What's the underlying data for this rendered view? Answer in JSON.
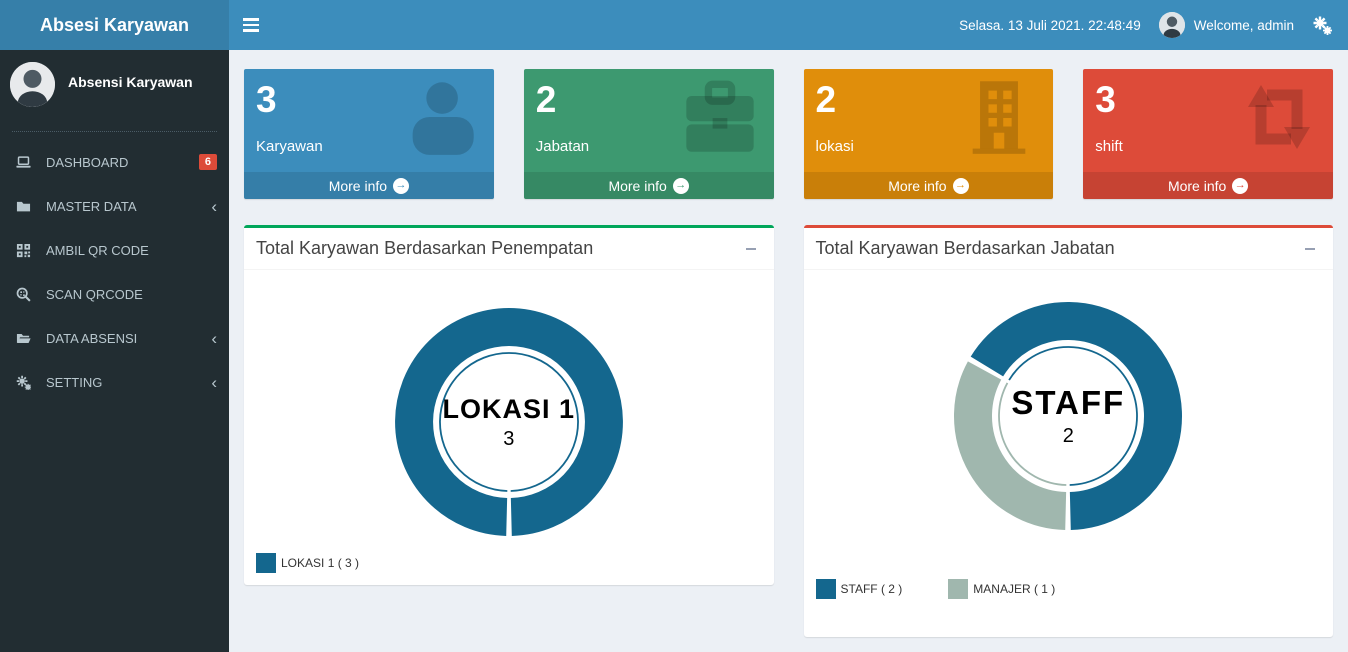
{
  "theme": {
    "navbar_bg": "#3c8dbc",
    "logo_bg": "#367fa9",
    "sidebar_bg": "#222d32",
    "sidebar_text": "#b8c7ce",
    "content_bg": "#ecf0f5",
    "badge_red": "#dd4b39"
  },
  "app": {
    "brand": "Absesi Karyawan"
  },
  "navbar": {
    "datetime": "Selasa. 13 Juli 2021. 22:48:49",
    "welcome": "Welcome, admin"
  },
  "sidebar": {
    "user_name": "Absensi Karyawan",
    "items": [
      {
        "label": "DASHBOARD",
        "icon": "laptop-icon",
        "badge": "6"
      },
      {
        "label": "MASTER DATA",
        "icon": "folder-icon",
        "chevron": "‹"
      },
      {
        "label": "AMBIL QR CODE",
        "icon": "qrcode-icon"
      },
      {
        "label": "SCAN QRCODE",
        "icon": "qr-scan-icon"
      },
      {
        "label": "DATA ABSENSI",
        "icon": "folder-open-icon",
        "chevron": "‹"
      },
      {
        "label": "SETTING",
        "icon": "gears-icon",
        "chevron": "‹"
      }
    ]
  },
  "info_boxes": [
    {
      "value": "3",
      "label": "Karyawan",
      "more_label": "More info",
      "color": "#3c8dbc",
      "icon": "user-icon"
    },
    {
      "value": "2",
      "label": "Jabatan",
      "more_label": "More info",
      "color": "#3d9970",
      "icon": "briefcase-icon"
    },
    {
      "value": "2",
      "label": "lokasi",
      "more_label": "More info",
      "color": "#e08e0b",
      "icon": "building-icon"
    },
    {
      "value": "3",
      "label": "shift",
      "more_label": "More info",
      "color": "#dd4b39",
      "icon": "refresh-icon"
    }
  ],
  "chart_data": [
    {
      "type": "pie",
      "title": "Total Karyawan Berdasarkan Penempatan",
      "accent_color": "#00a65a",
      "start_angle": 180,
      "donut": true,
      "slices": [
        {
          "label": "LOKASI 1",
          "value": 3,
          "color": "#14678e"
        }
      ],
      "center": {
        "label": "LOKASI 1",
        "value": "3"
      },
      "legend": [
        {
          "text": "LOKASI 1 ( 3 )",
          "color": "#14678e"
        }
      ]
    },
    {
      "type": "pie",
      "title": "Total Karyawan Berdasarkan Jabatan",
      "accent_color": "#dd4b39",
      "start_angle": 300,
      "donut": true,
      "slices": [
        {
          "label": "STAFF",
          "value": 2,
          "color": "#14678e"
        },
        {
          "label": "MANAJER",
          "value": 1,
          "color": "#a0b7ae"
        }
      ],
      "center": {
        "label": "STAFF",
        "value": "2"
      },
      "legend": [
        {
          "text": "STAFF ( 2 )",
          "color": "#14678e"
        },
        {
          "text": "MANAJER ( 1 )",
          "color": "#a0b7ae"
        }
      ]
    }
  ]
}
